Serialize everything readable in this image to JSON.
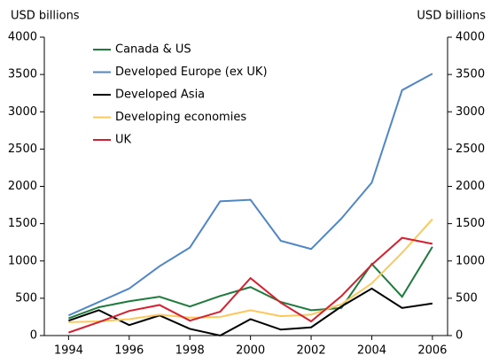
{
  "chart_data": {
    "type": "line",
    "ylabel": "USD billions",
    "y2label": "USD billions",
    "x": [
      1994,
      1995,
      1996,
      1997,
      1998,
      1999,
      2000,
      2001,
      2002,
      2003,
      2004,
      2005,
      2006
    ],
    "xlim": [
      1993.2,
      2006.5
    ],
    "xticks": [
      1994,
      1996,
      1998,
      2000,
      2002,
      2004,
      2006
    ],
    "ylim": [
      0,
      4000
    ],
    "yticks": [
      0,
      500,
      1000,
      1500,
      2000,
      2500,
      3000,
      3500,
      4000
    ],
    "y2lim": [
      0,
      4000
    ],
    "y2ticks": [
      0,
      500,
      1000,
      1500,
      2000,
      2500,
      3000,
      3500,
      4000
    ],
    "grid": false,
    "legend": "upper left",
    "series": [
      {
        "name": "Canada & US",
        "color": "#1e7b3c",
        "values": [
          230,
          380,
          460,
          520,
          390,
          530,
          650,
          450,
          340,
          370,
          960,
          520,
          1190
        ]
      },
      {
        "name": "Developed Europe (ex UK)",
        "color": "#4f86c6",
        "values": [
          270,
          450,
          630,
          930,
          1180,
          1800,
          1820,
          1270,
          1160,
          1570,
          2050,
          3290,
          3510
        ]
      },
      {
        "name": "Developed Asia",
        "color": "#000000",
        "values": [
          200,
          340,
          140,
          270,
          90,
          0,
          220,
          80,
          110,
          390,
          630,
          370,
          430
        ]
      },
      {
        "name": "Developing economies",
        "color": "#fcc85c",
        "values": [
          180,
          190,
          220,
          280,
          240,
          250,
          340,
          260,
          280,
          420,
          700,
          1110,
          1560
        ]
      },
      {
        "name": "UK",
        "color": "#d6202f",
        "values": [
          40,
          180,
          330,
          410,
          200,
          320,
          770,
          440,
          190,
          530,
          950,
          1310,
          1230
        ]
      }
    ]
  }
}
